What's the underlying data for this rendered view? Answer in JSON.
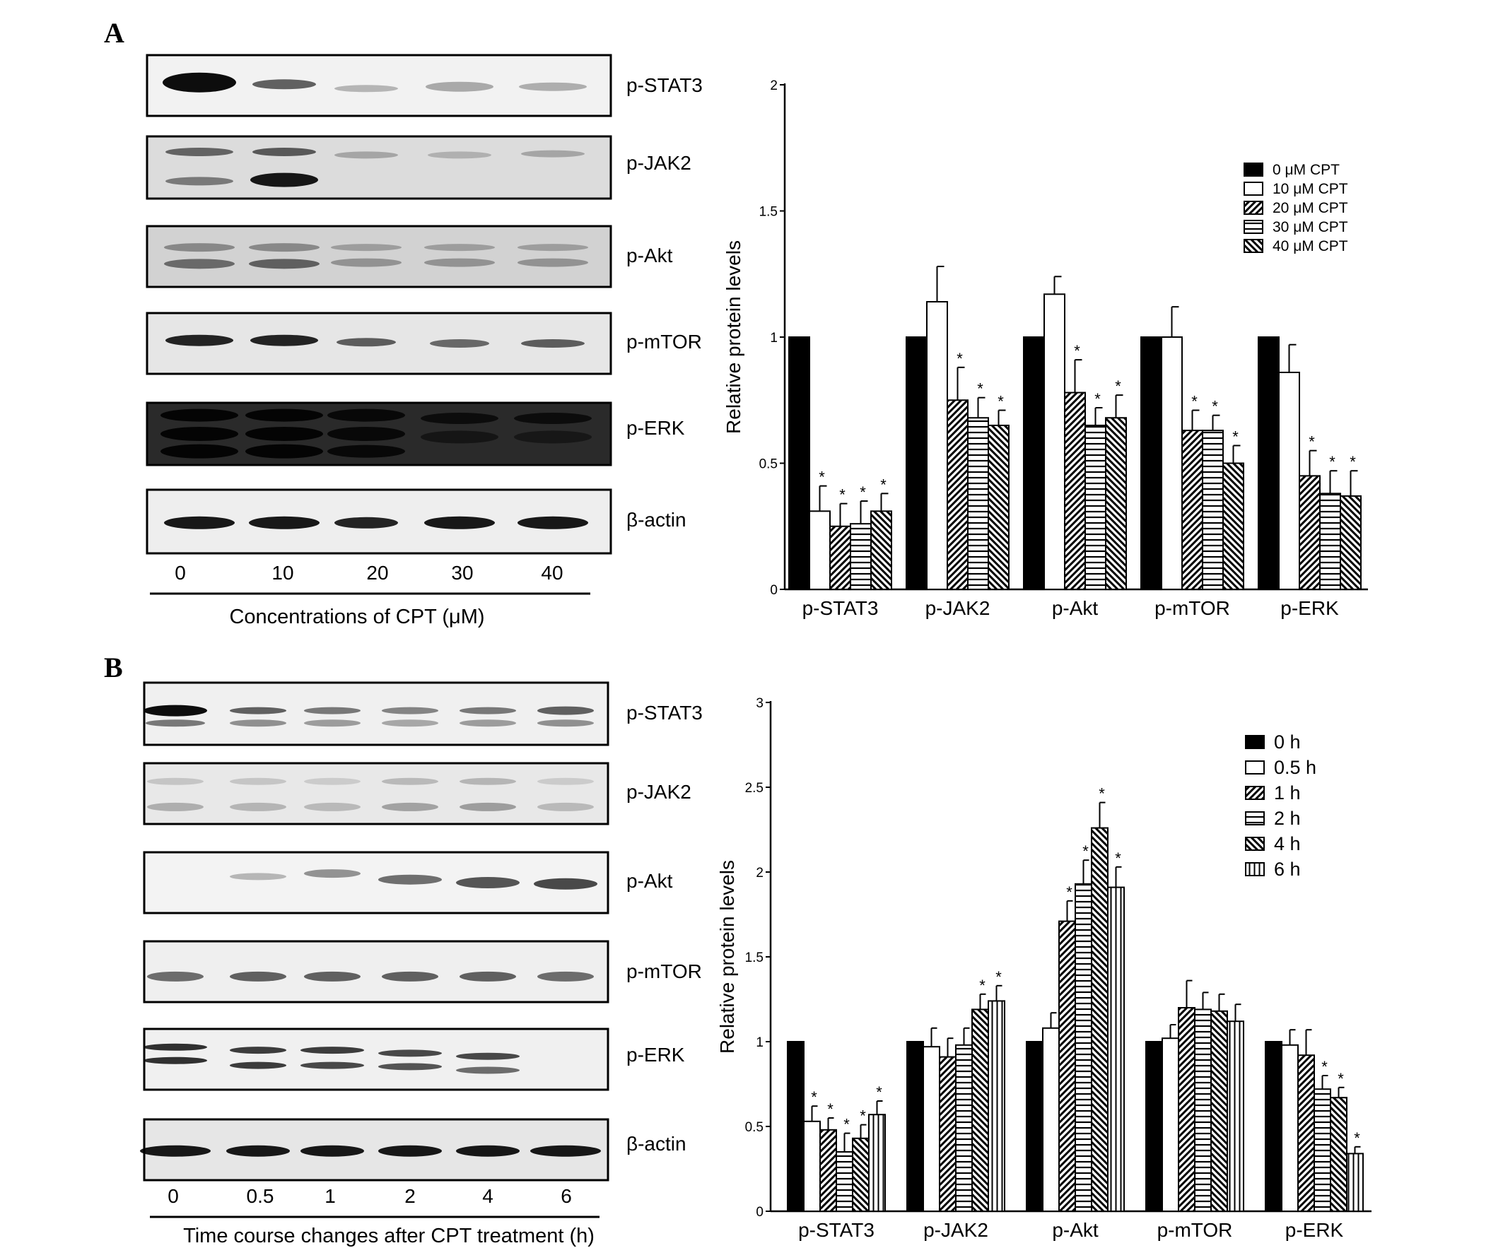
{
  "panels": [
    {
      "letter": "A",
      "blot": {
        "rows": [
          "p-STAT3",
          "p-JAK2",
          "p-Akt",
          "p-mTOR",
          "p-ERK",
          "β-actin"
        ],
        "lanes": [
          "0",
          "10",
          "20",
          "30",
          "40"
        ],
        "xtitle": "Concentrations of CPT (μM)"
      }
    },
    {
      "letter": "B",
      "blot": {
        "rows": [
          "p-STAT3",
          "p-JAK2",
          "p-Akt",
          "p-mTOR",
          "p-ERK",
          "β-actin"
        ],
        "lanes": [
          "0",
          "0.5",
          "1",
          "2",
          "4",
          "6"
        ],
        "xtitle": "Time course changes after CPT treatment (h)"
      }
    }
  ],
  "chart_data": [
    {
      "type": "bar",
      "title": "",
      "xlabel": "",
      "ylabel": "Relative protein levels",
      "ylim": [
        0,
        2
      ],
      "yticks": [
        "0",
        "0.5",
        "1",
        "1.5",
        "2"
      ],
      "grid": false,
      "legend_position": "top-right",
      "categories": [
        "p-STAT3",
        "p-JAK2",
        "p-Akt",
        "p-mTOR",
        "p-ERK"
      ],
      "series": [
        {
          "name": "0 μM  CPT",
          "pattern": "solid",
          "values": [
            1.0,
            1.0,
            1.0,
            1.0,
            1.0
          ],
          "errors": [
            0,
            0,
            0,
            0,
            0
          ],
          "significant": [
            false,
            false,
            false,
            false,
            false
          ]
        },
        {
          "name": "10 μM CPT",
          "pattern": "open",
          "values": [
            0.31,
            1.14,
            1.17,
            1.0,
            0.86
          ],
          "errors": [
            0.1,
            0.14,
            0.07,
            0.12,
            0.11
          ],
          "significant": [
            true,
            false,
            false,
            false,
            false
          ]
        },
        {
          "name": "20 μM CPT",
          "pattern": "diag-up",
          "values": [
            0.25,
            0.75,
            0.78,
            0.63,
            0.45
          ],
          "errors": [
            0.09,
            0.13,
            0.13,
            0.08,
            0.1
          ],
          "significant": [
            true,
            true,
            true,
            true,
            true
          ]
        },
        {
          "name": "30 μM CPT",
          "pattern": "hlines",
          "values": [
            0.26,
            0.68,
            0.65,
            0.63,
            0.38
          ],
          "errors": [
            0.09,
            0.08,
            0.07,
            0.06,
            0.09
          ],
          "significant": [
            true,
            true,
            true,
            true,
            true
          ]
        },
        {
          "name": "40 μM CPT",
          "pattern": "diag-down",
          "values": [
            0.31,
            0.65,
            0.68,
            0.5,
            0.37
          ],
          "errors": [
            0.07,
            0.06,
            0.09,
            0.07,
            0.1
          ],
          "significant": [
            true,
            true,
            true,
            true,
            true
          ]
        }
      ]
    },
    {
      "type": "bar",
      "title": "",
      "xlabel": "",
      "ylabel": "Relative protein levels",
      "ylim": [
        0,
        3
      ],
      "yticks": [
        "0",
        "0.5",
        "1",
        "1.5",
        "2",
        "2.5",
        "3"
      ],
      "grid": false,
      "legend_position": "top-right",
      "categories": [
        "p-STAT3",
        "p-JAK2",
        "p-Akt",
        "p-mTOR",
        "p-ERK"
      ],
      "series": [
        {
          "name": "0 h",
          "pattern": "solid",
          "values": [
            1.0,
            1.0,
            1.0,
            1.0,
            1.0
          ],
          "errors": [
            0,
            0,
            0,
            0,
            0
          ],
          "significant": [
            false,
            false,
            false,
            false,
            false
          ]
        },
        {
          "name": "0.5 h",
          "pattern": "open",
          "values": [
            0.53,
            0.97,
            1.08,
            1.02,
            0.98
          ],
          "errors": [
            0.09,
            0.11,
            0.09,
            0.08,
            0.09
          ],
          "significant": [
            true,
            false,
            false,
            false,
            false
          ]
        },
        {
          "name": "1 h",
          "pattern": "diag-up",
          "values": [
            0.48,
            0.91,
            1.71,
            1.2,
            0.92
          ],
          "errors": [
            0.07,
            0.11,
            0.12,
            0.16,
            0.15
          ],
          "significant": [
            true,
            false,
            true,
            false,
            false
          ]
        },
        {
          "name": "2 h",
          "pattern": "hlines",
          "values": [
            0.35,
            0.98,
            1.93,
            1.19,
            0.72
          ],
          "errors": [
            0.11,
            0.1,
            0.14,
            0.1,
            0.08
          ],
          "significant": [
            true,
            false,
            true,
            false,
            true
          ]
        },
        {
          "name": "4 h",
          "pattern": "diag-down",
          "values": [
            0.43,
            1.19,
            2.26,
            1.18,
            0.67
          ],
          "errors": [
            0.08,
            0.09,
            0.15,
            0.1,
            0.06
          ],
          "significant": [
            true,
            true,
            true,
            false,
            true
          ]
        },
        {
          "name": "6 h",
          "pattern": "vlines",
          "values": [
            0.57,
            1.24,
            1.91,
            1.12,
            0.34
          ],
          "errors": [
            0.08,
            0.09,
            0.12,
            0.1,
            0.04
          ],
          "significant": [
            true,
            true,
            true,
            false,
            true
          ]
        }
      ]
    }
  ]
}
